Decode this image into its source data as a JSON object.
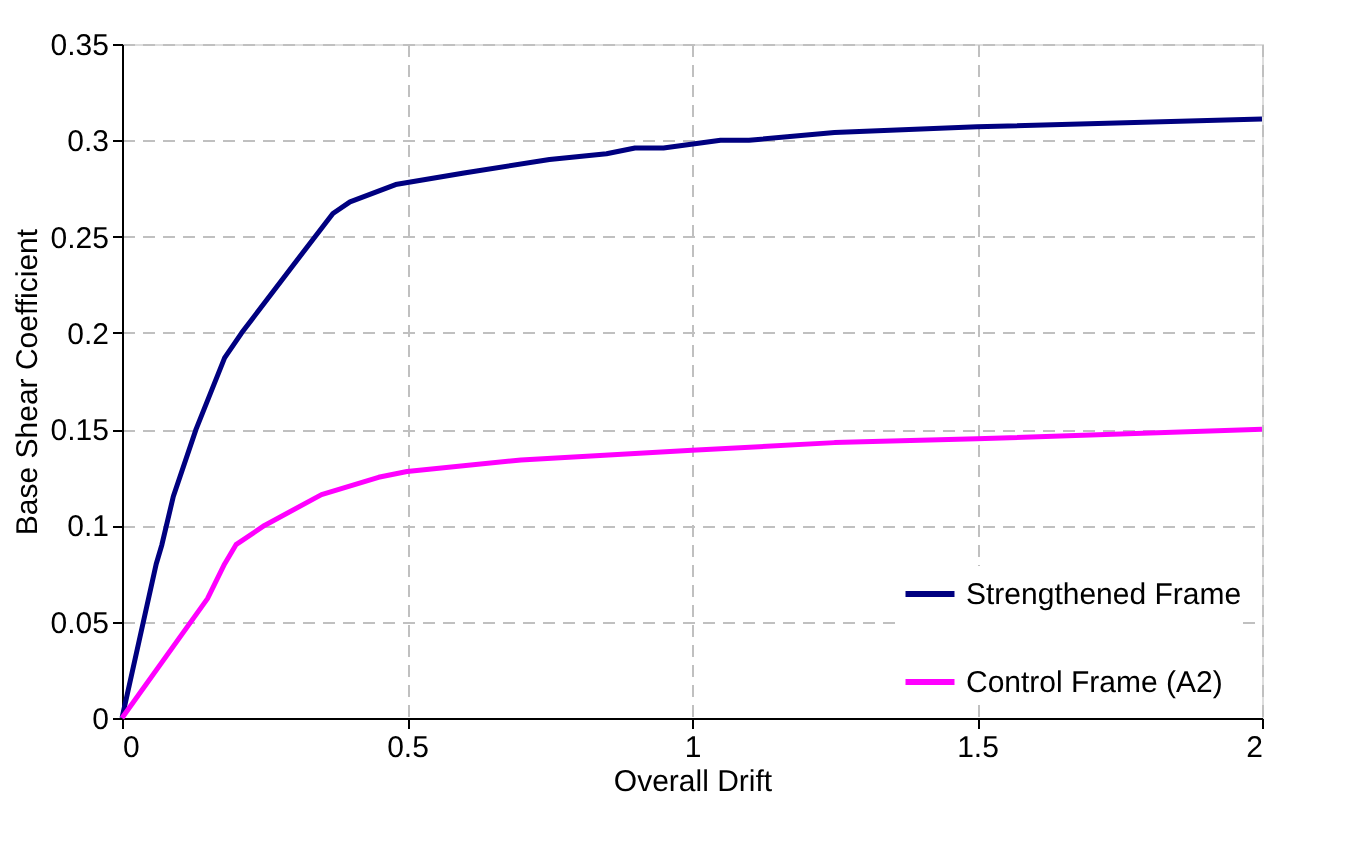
{
  "chart_data": {
    "type": "line",
    "xlabel": "Overall Drift",
    "ylabel": "Base Shear Coefficient",
    "xlim": [
      0,
      2
    ],
    "xticks": [
      0,
      0.5,
      1,
      1.5,
      2
    ],
    "ylim": [
      0,
      0.35
    ],
    "yticks": [
      0,
      0.05,
      0.1,
      0.15,
      0.2,
      0.25,
      0.3,
      0.35
    ],
    "grid": true,
    "legend": "bottom right",
    "marker": "none",
    "line_style": "solid",
    "series": [
      {
        "name": "Strengthened Frame",
        "color": "#000080",
        "x": [
          0,
          0.03,
          0.06,
          0.07,
          0.09,
          0.13,
          0.18,
          0.21,
          0.3,
          0.37,
          0.4,
          0.48,
          0.6,
          0.75,
          0.85,
          0.9,
          0.95,
          1.05,
          1.1,
          1.25,
          1.5,
          2
        ],
        "values": [
          0,
          0.04,
          0.08,
          0.09,
          0.115,
          0.15,
          0.187,
          0.2,
          0.235,
          0.262,
          0.268,
          0.277,
          0.283,
          0.29,
          0.293,
          0.296,
          0.296,
          0.3,
          0.3,
          0.304,
          0.307,
          0.311
        ]
      },
      {
        "name": "Control Frame (A2)",
        "color": "#ff00ff",
        "x": [
          0,
          0.15,
          0.18,
          0.2,
          0.25,
          0.35,
          0.45,
          0.5,
          0.7,
          1,
          1.25,
          1.5,
          2
        ],
        "values": [
          0,
          0.062,
          0.08,
          0.09,
          0.1,
          0.116,
          0.125,
          0.128,
          0.134,
          0.139,
          0.143,
          0.145,
          0.15
        ]
      }
    ]
  }
}
